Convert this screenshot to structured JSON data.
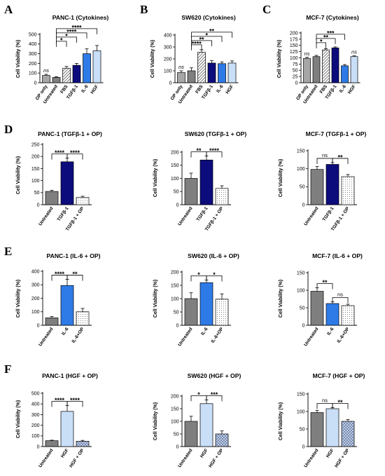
{
  "figure": {
    "panel_labels": [
      "A",
      "B",
      "C",
      "D",
      "E",
      "F"
    ]
  },
  "styles": {
    "op_only": {
      "fill": "#a6a6a6",
      "pattern": "solid"
    },
    "untreated": {
      "fill": "#7f7f7f",
      "pattern": "solid"
    },
    "fbs": {
      "fill": "#ffffff",
      "pattern": "diagonal"
    },
    "tgf": {
      "fill": "#0c0c7c",
      "pattern": "solid"
    },
    "il6": {
      "fill": "#2e7be8",
      "pattern": "solid"
    },
    "hgf": {
      "fill": "#c9def7",
      "pattern": "solid"
    },
    "op_combo_dots": {
      "fill": "#ffffff",
      "pattern": "dots"
    },
    "op_combo_cross": {
      "fill": "#c9d7ee",
      "pattern": "crosshatch"
    }
  },
  "chart_data": [
    {
      "type": "bar",
      "panel": "A",
      "title": "PANC-1 (Cytokines)",
      "ylabel": "Cell Viability (%)",
      "ylim": [
        0,
        500
      ],
      "yticks": [
        0,
        100,
        200,
        300,
        400,
        500
      ],
      "categories": [
        "OP only",
        "Untreated",
        "FBS",
        "TGFβ-1",
        "IL-6",
        "HGF"
      ],
      "values": [
        75,
        55,
        150,
        180,
        300,
        330
      ],
      "errors": [
        12,
        6,
        18,
        20,
        50,
        55
      ],
      "styles": [
        "op_only",
        "untreated",
        "fbs",
        "tgf",
        "il6",
        "hgf"
      ],
      "annotations": [
        {
          "type": "text",
          "bar": 0,
          "text": "ns",
          "italic": true
        },
        {
          "type": "bracket",
          "from": 1,
          "to": 2,
          "text": "*"
        },
        {
          "type": "bracket",
          "from": 1,
          "to": 3,
          "text": "*"
        },
        {
          "type": "bracket",
          "from": 1,
          "to": 4,
          "text": "****"
        },
        {
          "type": "bracket",
          "from": 1,
          "to": 5,
          "text": "****"
        }
      ]
    },
    {
      "type": "bar",
      "panel": "B",
      "title": "SW620 (Cytokines)",
      "ylabel": "Cell Viability (%)",
      "ylim": [
        0,
        400
      ],
      "yticks": [
        0,
        100,
        200,
        300,
        400
      ],
      "categories": [
        "OP only",
        "Untreated",
        "FBS",
        "TGFβ-1",
        "IL-6",
        "HGF"
      ],
      "values": [
        85,
        100,
        255,
        165,
        160,
        165
      ],
      "errors": [
        15,
        25,
        22,
        20,
        15,
        18
      ],
      "styles": [
        "op_only",
        "untreated",
        "fbs",
        "tgf",
        "il6",
        "hgf"
      ],
      "annotations": [
        {
          "type": "text",
          "bar": 0,
          "text": "ns",
          "italic": true
        },
        {
          "type": "bracket",
          "from": 1,
          "to": 2,
          "text": "****"
        },
        {
          "type": "bracket",
          "from": 1,
          "to": 3,
          "text": "**"
        },
        {
          "type": "bracket",
          "from": 1,
          "to": 4,
          "text": "*"
        },
        {
          "type": "bracket",
          "from": 1,
          "to": 5,
          "text": "**"
        }
      ]
    },
    {
      "type": "bar",
      "panel": "C",
      "title": "MCF-7 (Cytokines)",
      "ylabel": "Cell Viability (%)",
      "ylim": [
        0,
        200
      ],
      "yticks": [
        0,
        25,
        50,
        75,
        100,
        125,
        150,
        175,
        200
      ],
      "categories": [
        "OP only",
        "Untreated",
        "FBS",
        "TGFβ-1",
        "IL-6",
        "HGF"
      ],
      "values": [
        98,
        105,
        132,
        140,
        68,
        105
      ],
      "errors": [
        4,
        5,
        5,
        4,
        5,
        3
      ],
      "styles": [
        "op_only",
        "untreated",
        "fbs",
        "tgf",
        "il6",
        "hgf"
      ],
      "annotations": [
        {
          "type": "text",
          "bar": 0,
          "text": "ns",
          "italic": true
        },
        {
          "type": "bracket",
          "from": 1,
          "to": 2,
          "text": "*"
        },
        {
          "type": "bracket",
          "from": 1,
          "to": 3,
          "text": "**"
        },
        {
          "type": "bracket",
          "from": 1,
          "to": 4,
          "text": "***"
        },
        {
          "type": "text",
          "bar": 5,
          "text": "ns",
          "italic": true
        }
      ]
    },
    {
      "type": "bar",
      "panel": "D",
      "title": "PANC-1 (TGFβ-1 + OP)",
      "ylabel": "Cell Viability (%)",
      "ylim": [
        0,
        250
      ],
      "yticks": [
        0,
        50,
        100,
        150,
        200,
        250
      ],
      "categories": [
        "Untreated",
        "TGFβ-1",
        "TGFβ-1 + OP"
      ],
      "values": [
        55,
        178,
        30
      ],
      "errors": [
        5,
        15,
        5
      ],
      "styles": [
        "untreated",
        "tgf",
        "op_combo_dots"
      ],
      "annotations": [
        {
          "type": "bracket",
          "from": 0,
          "to": 1,
          "text": "****"
        },
        {
          "type": "bracket",
          "from": 1,
          "to": 2,
          "text": "****"
        }
      ]
    },
    {
      "type": "bar",
      "panel": "D",
      "title": "SW620 (TGFβ-1 + OP)",
      "ylabel": "Cell Viability (%)",
      "ylim": [
        0,
        200
      ],
      "yticks": [
        0,
        50,
        100,
        150,
        200
      ],
      "categories": [
        "Untreated",
        "TGFβ-1",
        "TGFβ-1 + OP"
      ],
      "values": [
        100,
        170,
        62
      ],
      "errors": [
        20,
        15,
        10
      ],
      "styles": [
        "untreated",
        "tgf",
        "op_combo_dots"
      ],
      "annotations": [
        {
          "type": "bracket",
          "from": 0,
          "to": 1,
          "text": "**"
        },
        {
          "type": "bracket",
          "from": 1,
          "to": 2,
          "text": "****"
        }
      ]
    },
    {
      "type": "bar",
      "panel": "D",
      "title": "MCF-7 (TGFβ-1 + OP)",
      "ylabel": "Cell Viability (%)",
      "ylim": [
        0,
        150
      ],
      "yticks": [
        0,
        50,
        100,
        150
      ],
      "categories": [
        "Untreated",
        "TGFβ-1",
        "TGFβ-1 + OP"
      ],
      "values": [
        98,
        112,
        78
      ],
      "errors": [
        8,
        5,
        6
      ],
      "styles": [
        "untreated",
        "tgf",
        "op_combo_dots"
      ],
      "annotations": [
        {
          "type": "bracket",
          "from": 0,
          "to": 1,
          "text": "ns"
        },
        {
          "type": "bracket",
          "from": 1,
          "to": 2,
          "text": "**"
        }
      ]
    },
    {
      "type": "bar",
      "panel": "E",
      "title": "PANC-1 (IL-6 + OP)",
      "ylabel": "Cell Viability (%)",
      "ylim": [
        0,
        400
      ],
      "yticks": [
        0,
        100,
        200,
        300,
        400
      ],
      "categories": [
        "Untreated",
        "IL-6",
        "IL-6+OP"
      ],
      "values": [
        55,
        295,
        100
      ],
      "errors": [
        10,
        45,
        25
      ],
      "styles": [
        "untreated",
        "il6",
        "op_combo_dots"
      ],
      "annotations": [
        {
          "type": "bracket",
          "from": 0,
          "to": 1,
          "text": "****"
        },
        {
          "type": "bracket",
          "from": 1,
          "to": 2,
          "text": "**"
        }
      ]
    },
    {
      "type": "bar",
      "panel": "E",
      "title": "SW620 (IL-6 + OP)",
      "ylabel": "Cell Viability (%)",
      "ylim": [
        0,
        200
      ],
      "yticks": [
        0,
        50,
        100,
        150,
        200
      ],
      "categories": [
        "Untreated",
        "IL-6",
        "IL-6+OP"
      ],
      "values": [
        100,
        160,
        98
      ],
      "errors": [
        22,
        10,
        20
      ],
      "styles": [
        "untreated",
        "il6",
        "op_combo_dots"
      ],
      "annotations": [
        {
          "type": "bracket",
          "from": 0,
          "to": 1,
          "text": "*"
        },
        {
          "type": "bracket",
          "from": 1,
          "to": 2,
          "text": "*"
        }
      ]
    },
    {
      "type": "bar",
      "panel": "E",
      "title": "MCF-7 (IL-6 + OP)",
      "ylabel": "Cell Viability (%)",
      "ylim": [
        0,
        150
      ],
      "yticks": [
        0,
        50,
        100,
        150
      ],
      "categories": [
        "Untreated",
        "IL-6",
        "IL-6+OP"
      ],
      "values": [
        97,
        62,
        56
      ],
      "errors": [
        10,
        5,
        4
      ],
      "styles": [
        "untreated",
        "il6",
        "op_combo_dots"
      ],
      "annotations": [
        {
          "type": "bracket",
          "from": 0,
          "to": 1,
          "text": "**"
        },
        {
          "type": "bracket",
          "from": 1,
          "to": 2,
          "text": "ns"
        }
      ]
    },
    {
      "type": "bar",
      "panel": "F",
      "title": "PANC-1 (HGF + OP)",
      "ylabel": "Cell Viability (%)",
      "ylim": [
        0,
        500
      ],
      "yticks": [
        0,
        100,
        200,
        300,
        400,
        500
      ],
      "categories": [
        "Untreated",
        "HGF",
        "HGF + OP"
      ],
      "values": [
        55,
        330,
        50
      ],
      "errors": [
        5,
        55,
        8
      ],
      "styles": [
        "untreated",
        "hgf",
        "op_combo_cross"
      ],
      "annotations": [
        {
          "type": "bracket",
          "from": 0,
          "to": 1,
          "text": "****"
        },
        {
          "type": "bracket",
          "from": 1,
          "to": 2,
          "text": "****"
        }
      ]
    },
    {
      "type": "bar",
      "panel": "F",
      "title": "SW620 (HGF + OP)",
      "ylabel": "Cell Viability (%)",
      "ylim": [
        0,
        200
      ],
      "yticks": [
        0,
        50,
        100,
        150,
        200
      ],
      "categories": [
        "Untreated",
        "HGF",
        "HGF + OP"
      ],
      "values": [
        100,
        170,
        50
      ],
      "errors": [
        20,
        15,
        12
      ],
      "styles": [
        "untreated",
        "hgf",
        "op_combo_cross"
      ],
      "annotations": [
        {
          "type": "bracket",
          "from": 0,
          "to": 1,
          "text": "*"
        },
        {
          "type": "bracket",
          "from": 1,
          "to": 2,
          "text": "***"
        }
      ]
    },
    {
      "type": "bar",
      "panel": "F",
      "title": "MCF-7 (HGF + OP)",
      "ylabel": "Cell Viability (%)",
      "ylim": [
        0,
        150
      ],
      "yticks": [
        0,
        50,
        100,
        150
      ],
      "categories": [
        "Untreated",
        "HGF",
        "HGF + OP"
      ],
      "values": [
        97,
        108,
        72
      ],
      "errors": [
        6,
        3,
        5
      ],
      "styles": [
        "untreated",
        "hgf",
        "op_combo_cross"
      ],
      "annotations": [
        {
          "type": "bracket",
          "from": 0,
          "to": 1,
          "text": "ns"
        },
        {
          "type": "bracket",
          "from": 1,
          "to": 2,
          "text": "**"
        }
      ]
    }
  ]
}
